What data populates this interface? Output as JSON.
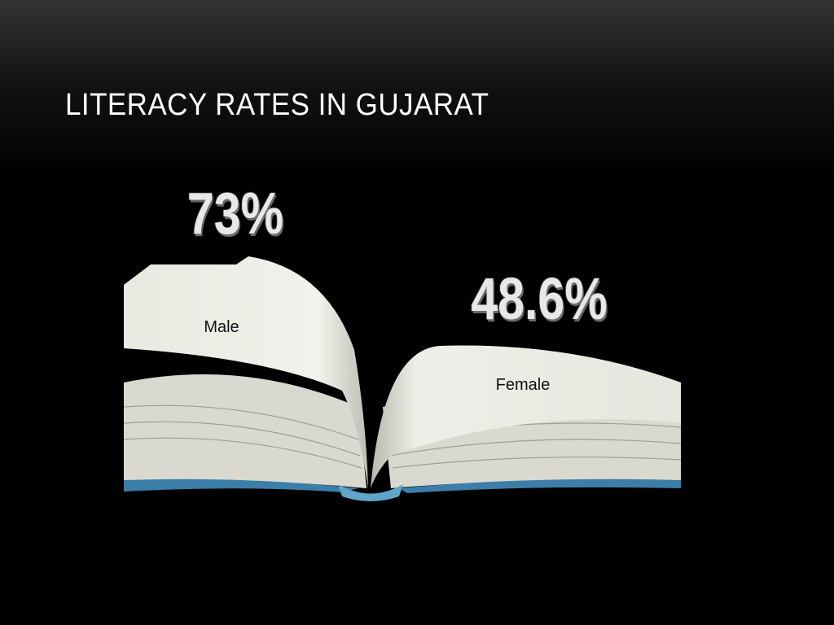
{
  "slide": {
    "title": "LITERACY RATES IN GUJARAT",
    "items": [
      {
        "value": "73%",
        "label": "Male"
      },
      {
        "value": "48.6%",
        "label": "Female"
      }
    ]
  }
}
